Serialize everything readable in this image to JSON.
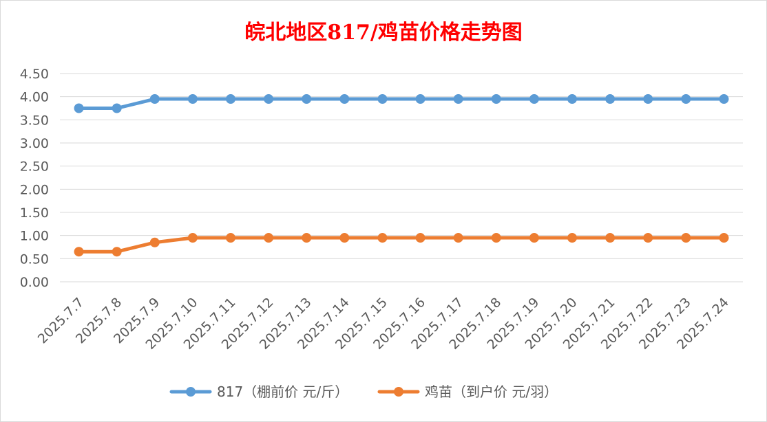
{
  "chart_data": {
    "type": "line",
    "title": "皖北地区817/鸡苗价格走势图",
    "title_color": "#ff0000",
    "categories": [
      "2025.7.7",
      "2025.7.8",
      "2025.7.9",
      "2025.7.10",
      "2025.7.11",
      "2025.7.12",
      "2025.7.13",
      "2025.7.14",
      "2025.7.15",
      "2025.7.16",
      "2025.7.17",
      "2025.7.18",
      "2025.7.19",
      "2025.7.20",
      "2025.7.21",
      "2025.7.22",
      "2025.7.23",
      "2025.7.24"
    ],
    "series": [
      {
        "name": "817（棚前价 元/斤）",
        "color": "#5b9bd5",
        "values": [
          3.75,
          3.75,
          3.95,
          3.95,
          3.95,
          3.95,
          3.95,
          3.95,
          3.95,
          3.95,
          3.95,
          3.95,
          3.95,
          3.95,
          3.95,
          3.95,
          3.95,
          3.95
        ]
      },
      {
        "name": "鸡苗（到户价 元/羽）",
        "color": "#ed7d31",
        "values": [
          0.65,
          0.65,
          0.85,
          0.95,
          0.95,
          0.95,
          0.95,
          0.95,
          0.95,
          0.95,
          0.95,
          0.95,
          0.95,
          0.95,
          0.95,
          0.95,
          0.95,
          0.95
        ]
      }
    ],
    "yticks": [
      "0.00",
      "0.50",
      "1.00",
      "1.50",
      "2.00",
      "2.50",
      "3.00",
      "3.50",
      "4.00",
      "4.50"
    ],
    "ylim": [
      0,
      4.5
    ],
    "grid": true,
    "legend_position": "bottom"
  }
}
